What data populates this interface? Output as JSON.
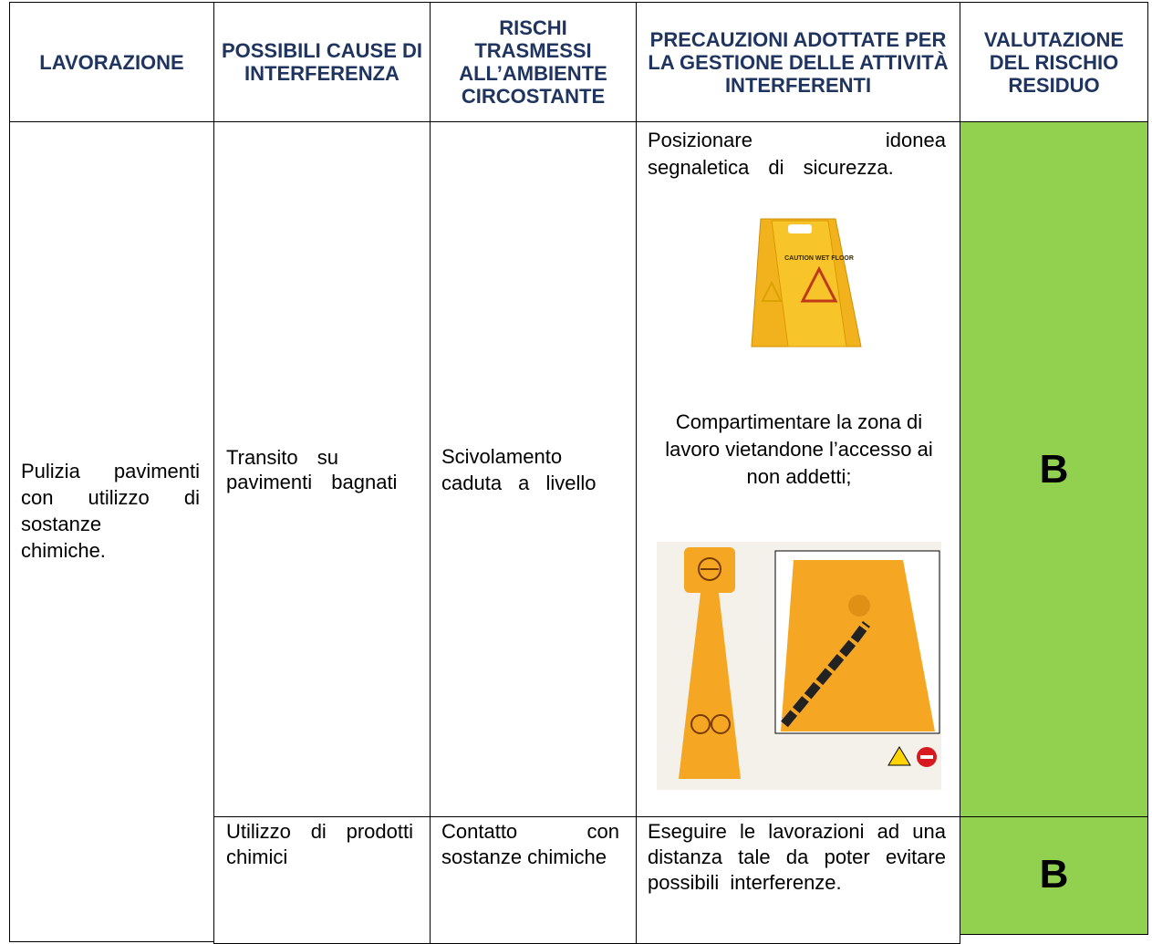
{
  "table": {
    "header": [
      "LAVORAZIONE",
      "POSSIBILI CAUSE DI INTERFERENZA",
      "RISCHI TRASMESSI ALL’AMBIENTE CIRCOSTANTE",
      "PRECAUZIONI ADOTTATE PER LA GESTIONE DELLE ATTIVITÀ INTERFERENTI",
      "VALUTAZIONE DEL RISCHIO RESIDUO"
    ],
    "rows": [
      {
        "lavorazione": "Pulizia pavimenti con utilizzo di sostanze chimiche.",
        "cause": "Transito su pavimenti bagnati",
        "rischi": "Scivolamento caduta a livello",
        "precauzioni": [
          "Posizionare idonea segnaletica di sicurezza.",
          "Compartimentare la zona di lavoro vietandone l’accesso ai non addetti;"
        ],
        "sign_label": "CAUTION WET FLOOR",
        "valutazione": "B"
      },
      {
        "cause": "Utilizzo di prodotti chimici",
        "rischi": "Contatto con sostanze chimiche",
        "precauzioni": [
          "Eseguire le lavorazioni ad una distanza tale da poter evitare possibili interferenze."
        ],
        "valutazione": "B"
      }
    ]
  }
}
